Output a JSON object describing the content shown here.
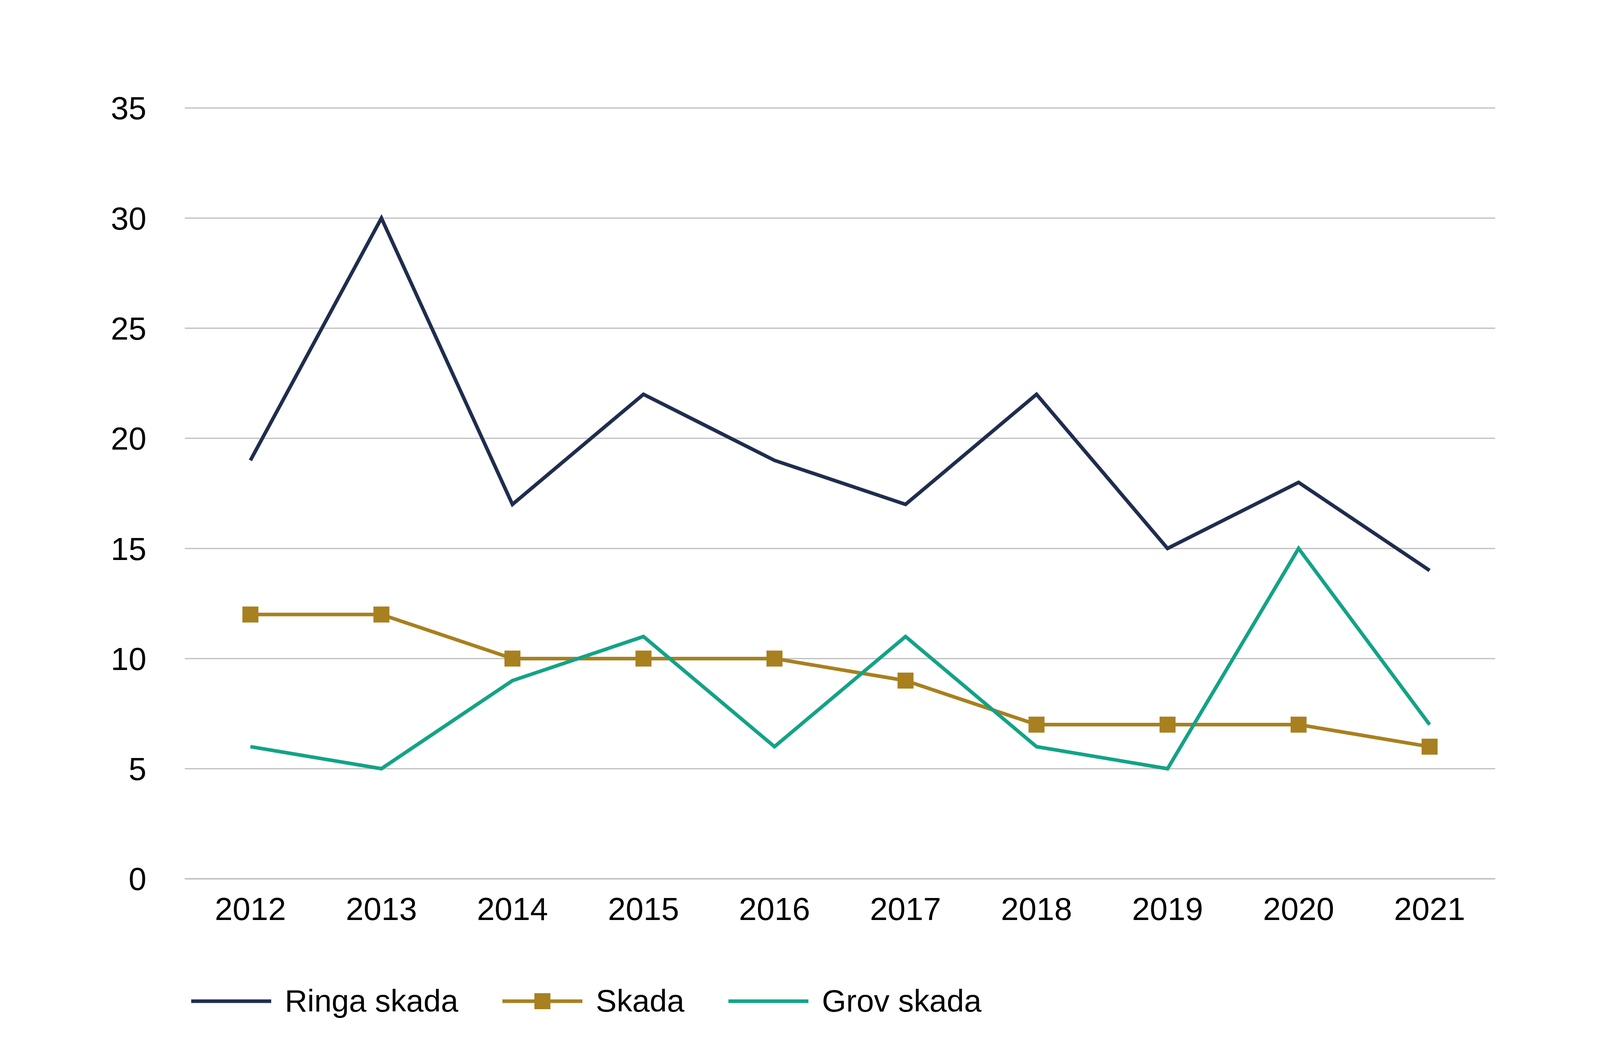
{
  "chart_data": {
    "type": "line",
    "categories": [
      "2012",
      "2013",
      "2014",
      "2015",
      "2016",
      "2017",
      "2018",
      "2019",
      "2020",
      "2021"
    ],
    "series": [
      {
        "name": "Ringa skada",
        "color": "#1f2d4e",
        "values": [
          19,
          30,
          17,
          22,
          19,
          17,
          22,
          15,
          18,
          14
        ]
      },
      {
        "name": "Skada",
        "color": "#a8801f",
        "marker": "square",
        "values": [
          12,
          12,
          10,
          10,
          10,
          9,
          7,
          7,
          7,
          6
        ]
      },
      {
        "name": "Grov skada",
        "color": "#13a386",
        "values": [
          6,
          5,
          9,
          11,
          6,
          11,
          6,
          5,
          15,
          7
        ]
      }
    ],
    "ylim": [
      0,
      35
    ],
    "yticks": [
      0,
      5,
      10,
      15,
      20,
      25,
      30,
      35
    ],
    "grid": true,
    "legend": "bottom-left"
  }
}
